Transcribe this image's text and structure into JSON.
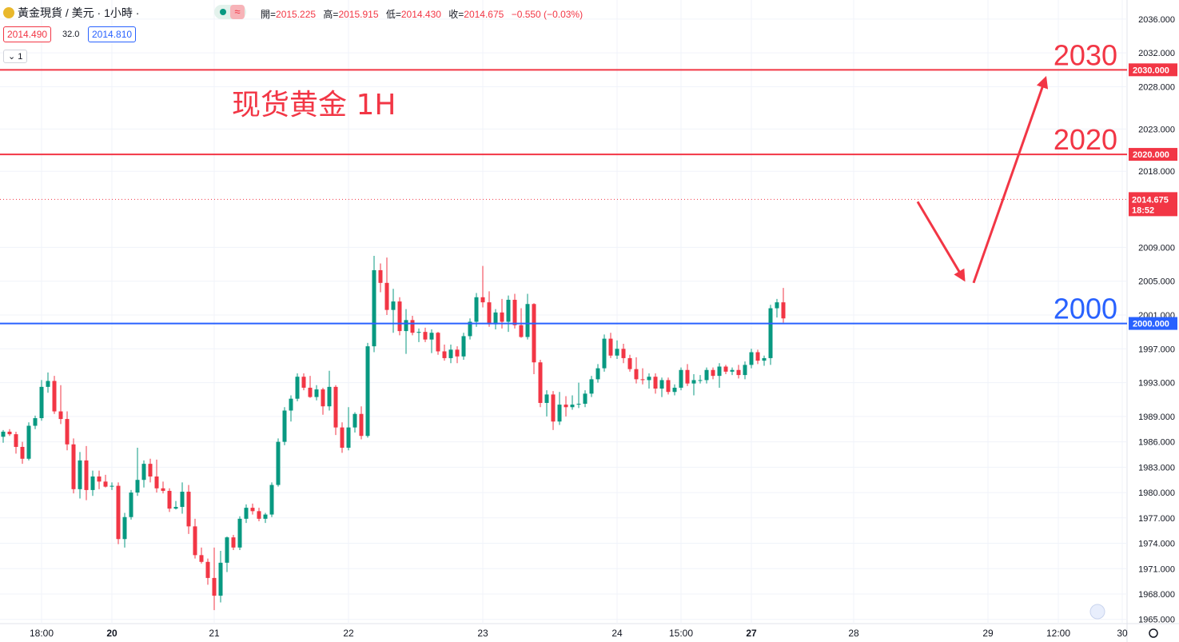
{
  "header": {
    "symbol": "黃金現貨 / 美元 · 1小時 ·",
    "bid": "2014.490",
    "spread": "32.0",
    "ask": "2014.810",
    "interval_btn": "1",
    "ohlc_labels": {
      "open": "開=",
      "high": "高=",
      "low": "低=",
      "close": "收="
    },
    "open": "2015.225",
    "high": "2015.915",
    "low": "2014.430",
    "close": "2014.675",
    "change": "−0.550 (−0.03%)",
    "status_icon": "green-dot-icon",
    "wave_icon": "approx-icon"
  },
  "chart_data": {
    "type": "candlestick",
    "title": "现货黄金 1H",
    "ylim": [
      1964.5,
      2037.5
    ],
    "y_ticks": [
      "2036.000",
      "2032.000",
      "2028.000",
      "2023.000",
      "2018.000",
      "2009.000",
      "2005.000",
      "2001.000",
      "1997.000",
      "1993.000",
      "1989.000",
      "1986.000",
      "1983.000",
      "1980.000",
      "1977.000",
      "1974.000",
      "1971.000",
      "1968.000",
      "1965.000"
    ],
    "x_labels": [
      {
        "label": "18:00",
        "bar": 6,
        "bold": false
      },
      {
        "label": "20",
        "bar": 17,
        "bold": true
      },
      {
        "label": "21",
        "bar": 33,
        "bold": false
      },
      {
        "label": "22",
        "bar": 54,
        "bold": false
      },
      {
        "label": "23",
        "bar": 75,
        "bold": false
      },
      {
        "label": "24",
        "bar": 96,
        "bold": false
      },
      {
        "label": "15:00",
        "bar": 106,
        "bold": false
      },
      {
        "label": "27",
        "bar": 117,
        "bold": true
      },
      {
        "label": "28",
        "bar": 133,
        "bold": false
      },
      {
        "label": "29",
        "bar": 154,
        "bold": false
      },
      {
        "label": "12:00",
        "bar": 165,
        "bold": false
      },
      {
        "label": "30",
        "bar": 175,
        "bold": false
      }
    ],
    "levels": [
      {
        "value": 2030.0,
        "label": "2030",
        "tag": "2030.000",
        "color": "#f23645"
      },
      {
        "value": 2020.0,
        "label": "2020",
        "tag": "2020.000",
        "color": "#f23645"
      },
      {
        "value": 2000.0,
        "label": "2000",
        "tag": "2000.000",
        "color": "#2962ff"
      }
    ],
    "last_price": {
      "value": 2014.675,
      "label": "2014.675",
      "countdown": "18:52"
    },
    "projection": [
      {
        "bar": 143,
        "y": 2014.4
      },
      {
        "bar": 151,
        "y": 2004.8
      },
      {
        "bar": 163,
        "y": 2029.0
      }
    ],
    "candles": [
      [
        1986.6,
        1987.4,
        1985.9,
        1987.2
      ],
      [
        1987.2,
        1987.5,
        1986.7,
        1986.9
      ],
      [
        1986.9,
        1987.2,
        1984.6,
        1985.4
      ],
      [
        1985.4,
        1986.0,
        1983.4,
        1984.0
      ],
      [
        1984.0,
        1988.3,
        1983.8,
        1987.9
      ],
      [
        1987.9,
        1989.1,
        1987.5,
        1988.8
      ],
      [
        1988.8,
        1993.3,
        1988.5,
        1992.5
      ],
      [
        1992.5,
        1994.2,
        1991.8,
        1993.2
      ],
      [
        1993.2,
        1993.8,
        1989.3,
        1989.6
      ],
      [
        1989.6,
        1992.7,
        1988.1,
        1988.7
      ],
      [
        1988.7,
        1989.6,
        1985.0,
        1985.7
      ],
      [
        1985.7,
        1986.4,
        1979.9,
        1980.4
      ],
      [
        1980.4,
        1984.8,
        1979.3,
        1983.8
      ],
      [
        1983.8,
        1985.5,
        1979.1,
        1980.3
      ],
      [
        1980.3,
        1982.6,
        1979.6,
        1981.9
      ],
      [
        1981.9,
        1982.6,
        1980.4,
        1981.3
      ],
      [
        1981.3,
        1982.1,
        1980.6,
        1980.7
      ],
      [
        1980.7,
        1981.2,
        1980.3,
        1980.8
      ],
      [
        1980.8,
        1981.2,
        1973.9,
        1974.5
      ],
      [
        1974.5,
        1977.6,
        1973.5,
        1977.1
      ],
      [
        1977.1,
        1980.3,
        1976.8,
        1980.0
      ],
      [
        1980.0,
        1985.3,
        1979.6,
        1981.5
      ],
      [
        1981.5,
        1983.8,
        1980.6,
        1983.4
      ],
      [
        1983.4,
        1984.0,
        1981.2,
        1981.9
      ],
      [
        1981.9,
        1983.9,
        1980.0,
        1980.5
      ],
      [
        1980.5,
        1981.3,
        1979.9,
        1980.2
      ],
      [
        1980.2,
        1980.5,
        1977.7,
        1978.1
      ],
      [
        1978.1,
        1979.0,
        1978.0,
        1978.3
      ],
      [
        1978.3,
        1981.2,
        1977.5,
        1980.1
      ],
      [
        1980.1,
        1980.9,
        1975.1,
        1976.0
      ],
      [
        1976.0,
        1976.9,
        1972.2,
        1972.6
      ],
      [
        1972.6,
        1973.5,
        1971.6,
        1971.8
      ],
      [
        1971.8,
        1972.2,
        1969.1,
        1969.9
      ],
      [
        1969.9,
        1973.5,
        1966.1,
        1967.8
      ],
      [
        1967.8,
        1973.1,
        1967.0,
        1971.7
      ],
      [
        1971.7,
        1974.8,
        1970.6,
        1974.7
      ],
      [
        1974.7,
        1975.0,
        1973.2,
        1973.5
      ],
      [
        1973.5,
        1977.2,
        1973.2,
        1976.9
      ],
      [
        1976.9,
        1978.6,
        1976.4,
        1978.2
      ],
      [
        1978.2,
        1978.7,
        1977.4,
        1977.8
      ],
      [
        1977.8,
        1978.2,
        1976.6,
        1976.9
      ],
      [
        1976.9,
        1977.6,
        1976.4,
        1977.4
      ],
      [
        1977.4,
        1981.2,
        1977.1,
        1980.9
      ],
      [
        1980.9,
        1986.4,
        1980.7,
        1986.0
      ],
      [
        1986.0,
        1990.1,
        1985.6,
        1989.7
      ],
      [
        1989.7,
        1991.5,
        1988.4,
        1991.1
      ],
      [
        1991.1,
        1994.1,
        1990.8,
        1993.7
      ],
      [
        1993.7,
        1994.1,
        1992.1,
        1992.4
      ],
      [
        1992.4,
        1993.8,
        1991.2,
        1991.3
      ],
      [
        1991.3,
        1992.7,
        1990.9,
        1992.2
      ],
      [
        1992.2,
        1992.4,
        1989.2,
        1990.2
      ],
      [
        1990.2,
        1994.4,
        1989.7,
        1992.5
      ],
      [
        1992.5,
        1992.7,
        1986.8,
        1987.7
      ],
      [
        1987.7,
        1988.3,
        1984.7,
        1985.3
      ],
      [
        1985.3,
        1990.1,
        1985.0,
        1987.7
      ],
      [
        1987.7,
        1989.5,
        1987.1,
        1989.3
      ],
      [
        1989.3,
        1990.2,
        1986.3,
        1986.7
      ],
      [
        1986.7,
        1997.7,
        1986.5,
        1997.3
      ],
      [
        1997.3,
        2008.0,
        1996.6,
        2006.3
      ],
      [
        2006.3,
        2007.1,
        2003.7,
        2004.8
      ],
      [
        2004.8,
        2007.8,
        2001.0,
        2001.6
      ],
      [
        2001.6,
        2004.1,
        1998.9,
        2002.6
      ],
      [
        2002.6,
        2003.1,
        1998.6,
        1999.1
      ],
      [
        1999.1,
        2001.7,
        1996.4,
        2000.4
      ],
      [
        2000.4,
        2000.9,
        1998.6,
        1998.9
      ],
      [
        1998.9,
        1999.4,
        1997.8,
        1999.0
      ],
      [
        1999.0,
        1999.5,
        1997.8,
        1998.1
      ],
      [
        1998.1,
        1999.3,
        1996.5,
        1998.9
      ],
      [
        1998.9,
        1999.0,
        1996.3,
        1996.7
      ],
      [
        1996.7,
        1997.5,
        1995.6,
        1995.9
      ],
      [
        1995.9,
        1997.5,
        1995.3,
        1996.9
      ],
      [
        1996.9,
        1997.3,
        1995.3,
        1996.1
      ],
      [
        1996.1,
        1998.9,
        1995.7,
        1998.5
      ],
      [
        1998.5,
        2000.6,
        1998.1,
        2000.2
      ],
      [
        2000.2,
        2003.6,
        1999.6,
        2003.1
      ],
      [
        2003.1,
        2006.8,
        2001.9,
        2002.5
      ],
      [
        2002.5,
        2003.8,
        1999.6,
        1999.9
      ],
      [
        1999.9,
        2001.7,
        1999.3,
        2001.3
      ],
      [
        2001.3,
        2002.9,
        1999.4,
        2000.2
      ],
      [
        2000.2,
        2003.3,
        1999.0,
        2002.8
      ],
      [
        2002.8,
        2003.5,
        1999.4,
        1999.8
      ],
      [
        1999.8,
        2001.8,
        1998.3,
        1998.4
      ],
      [
        1998.4,
        2003.5,
        1998.1,
        2002.3
      ],
      [
        2002.3,
        2002.4,
        1994.0,
        1995.4
      ],
      [
        1995.4,
        1995.7,
        1990.1,
        1990.6
      ],
      [
        1990.6,
        1992.1,
        1989.0,
        1991.6
      ],
      [
        1991.6,
        1992.0,
        1987.4,
        1988.4
      ],
      [
        1988.4,
        1991.9,
        1988.0,
        1990.4
      ],
      [
        1990.4,
        1991.4,
        1989.0,
        1990.1
      ],
      [
        1990.1,
        1991.5,
        1989.8,
        1990.4
      ],
      [
        1990.4,
        1993.0,
        1990.0,
        1990.5
      ],
      [
        1990.5,
        1992.1,
        1990.1,
        1991.7
      ],
      [
        1991.7,
        1993.8,
        1991.3,
        1993.4
      ],
      [
        1993.4,
        1995.2,
        1993.0,
        1994.7
      ],
      [
        1994.7,
        1998.7,
        1994.3,
        1998.2
      ],
      [
        1998.2,
        1998.9,
        1995.9,
        1996.2
      ],
      [
        1996.2,
        1998.0,
        1995.8,
        1997.0
      ],
      [
        1997.0,
        1997.6,
        1995.3,
        1995.9
      ],
      [
        1995.9,
        1996.3,
        1994.3,
        1994.6
      ],
      [
        1994.6,
        1996.0,
        1992.9,
        1993.4
      ],
      [
        1993.4,
        1994.7,
        1992.8,
        1993.3
      ],
      [
        1993.3,
        1994.1,
        1992.3,
        1993.7
      ],
      [
        1993.7,
        1994.1,
        1991.7,
        1992.3
      ],
      [
        1992.3,
        1993.6,
        1991.3,
        1993.3
      ],
      [
        1993.3,
        1993.6,
        1991.6,
        1991.9
      ],
      [
        1991.9,
        1992.8,
        1991.5,
        1992.4
      ],
      [
        1992.4,
        1994.8,
        1992.1,
        1994.5
      ],
      [
        1994.5,
        1995.2,
        1992.6,
        1992.9
      ],
      [
        1992.9,
        1994.0,
        1991.5,
        1993.3
      ],
      [
        1993.3,
        1993.9,
        1992.9,
        1993.3
      ],
      [
        1993.3,
        1994.8,
        1992.9,
        1994.5
      ],
      [
        1994.5,
        1994.8,
        1993.4,
        1993.8
      ],
      [
        1993.8,
        1995.3,
        1992.4,
        1994.9
      ],
      [
        1994.9,
        1995.1,
        1994.0,
        1994.3
      ],
      [
        1994.3,
        1994.8,
        1993.9,
        1994.5
      ],
      [
        1994.5,
        1995.1,
        1993.5,
        1993.9
      ],
      [
        1993.9,
        1995.5,
        1993.4,
        1995.1
      ],
      [
        1995.1,
        1997.0,
        1994.7,
        1996.6
      ],
      [
        1996.6,
        1996.9,
        1995.2,
        1995.6
      ],
      [
        1995.6,
        1996.2,
        1995.0,
        1995.9
      ],
      [
        1995.9,
        2002.2,
        1995.1,
        2001.8
      ],
      [
        2001.8,
        2002.9,
        2000.7,
        2002.5
      ],
      [
        2002.5,
        2004.2,
        2000.1,
        2000.6
      ]
    ]
  }
}
